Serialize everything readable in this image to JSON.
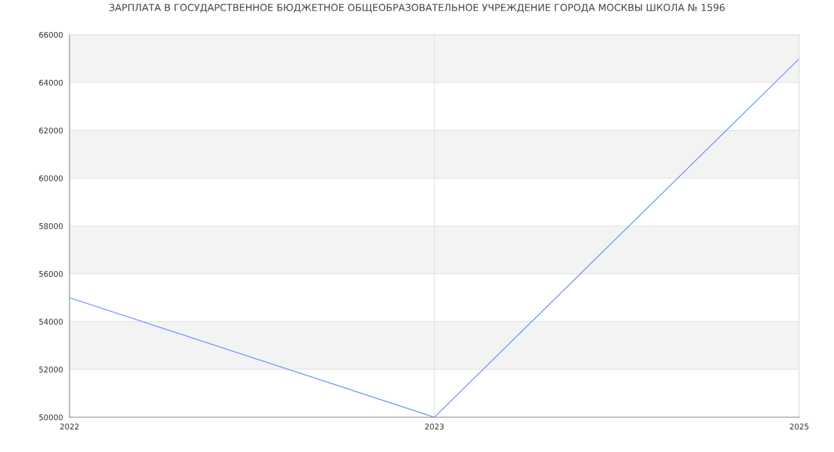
{
  "chart_data": {
    "type": "line",
    "title": "ЗАРПЛАТА В ГОСУДАРСТВЕННОЕ БЮДЖЕТНОЕ ОБЩЕОБРАЗОВАТЕЛЬНОЕ УЧРЕЖДЕНИЕ ГОРОДА МОСКВЫ ШКОЛА № 1596",
    "categories": [
      "2022",
      "2023",
      "2025"
    ],
    "series": [
      {
        "color": "#6f9bf5",
        "values": [
          55000,
          50000,
          65000
        ]
      }
    ],
    "ylim": [
      50000,
      66000
    ],
    "yticks": [
      50000,
      52000,
      54000,
      56000,
      58000,
      60000,
      62000,
      64000,
      66000
    ],
    "grid": true,
    "marker": "none",
    "line_style": "solid"
  }
}
